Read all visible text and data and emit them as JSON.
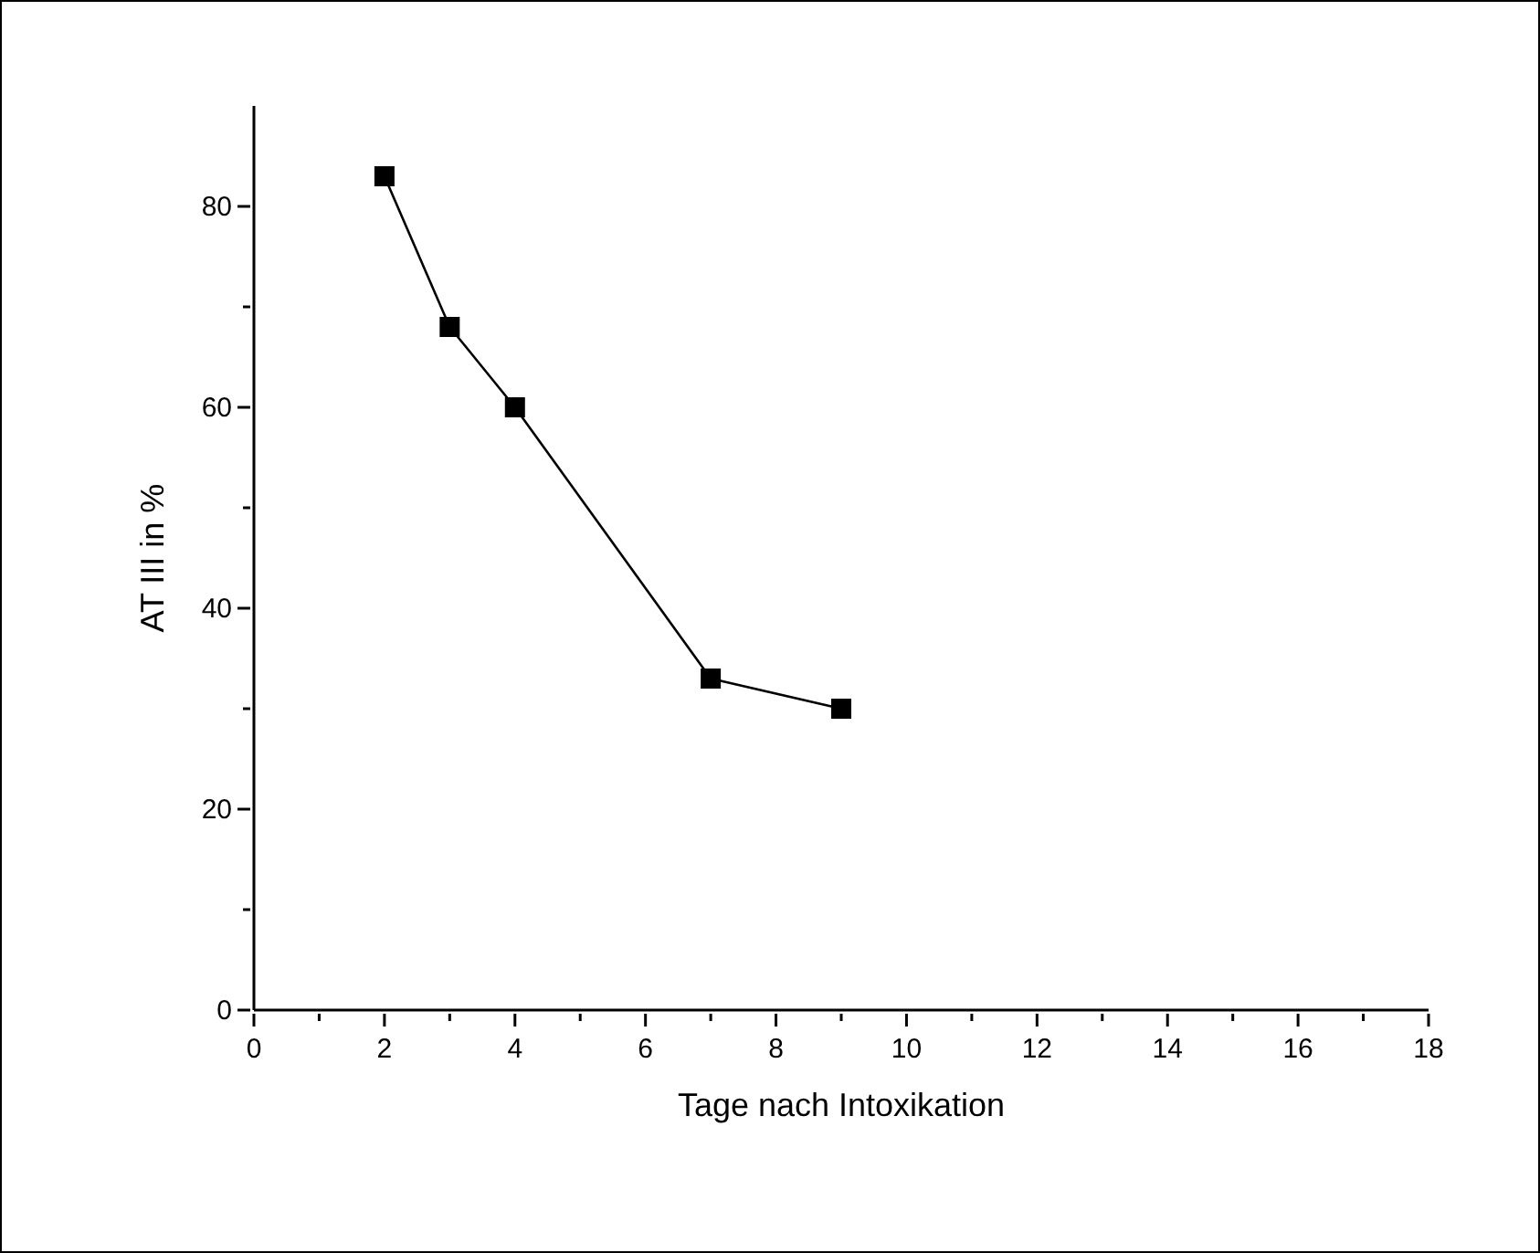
{
  "chart_data": {
    "type": "line",
    "xlabel": "Tage nach Intoxikation",
    "ylabel": "AT III in %",
    "x": [
      2,
      3,
      4,
      7,
      9
    ],
    "series": [
      {
        "color": "#000000",
        "values": [
          83,
          68,
          60,
          33,
          30
        ]
      }
    ],
    "xlim": [
      0,
      18
    ],
    "xticks": [
      0,
      {
        "value": 1,
        "label": null
      },
      2,
      {
        "value": 3,
        "label": null
      },
      4,
      {
        "value": 5,
        "label": null
      },
      6,
      {
        "value": 7,
        "label": null
      },
      8,
      {
        "value": 9,
        "label": null
      },
      10,
      {
        "value": 11,
        "label": null
      },
      12,
      {
        "value": 13,
        "label": null
      },
      14,
      {
        "value": 15,
        "label": null
      },
      16,
      {
        "value": 17,
        "label": null
      },
      18
    ],
    "ylim": [
      0,
      90
    ],
    "yticks": [
      0,
      {
        "value": 10,
        "label": null
      },
      20,
      {
        "value": 30,
        "label": null
      },
      40,
      {
        "value": 50,
        "label": null
      },
      60,
      {
        "value": 70,
        "label": null
      },
      80
    ],
    "marker": "square",
    "line_style": "solid",
    "grid": false,
    "legend": false
  }
}
